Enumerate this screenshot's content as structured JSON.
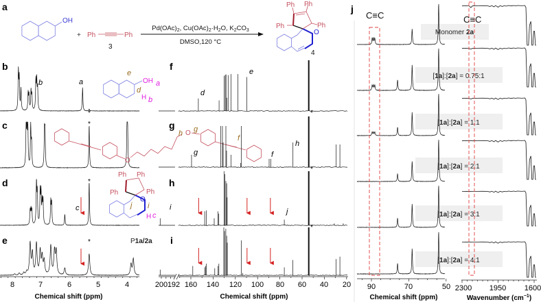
{
  "panel_labels": {
    "a": "a",
    "b": "b",
    "c": "c",
    "d": "d",
    "e": "e",
    "f": "f",
    "g": "g",
    "h": "h",
    "i": "i",
    "j": "j"
  },
  "reaction": {
    "naphthol_oh": "OH",
    "plus": "+",
    "alkyne_left": "Ph",
    "alkyne_right": "Ph",
    "alkyne_number": "3",
    "conditions_top": [
      "Pd(OAc)",
      "2",
      ", Cu(OAc)",
      "2",
      "·H",
      "2",
      "O, K",
      "2",
      "CO",
      "3"
    ],
    "conditions_bottom": "DMSO,120 °C",
    "product_phenyls": [
      "Ph",
      "Ph",
      "Ph",
      "Ph"
    ],
    "product_oxygen": "O",
    "product_number": "4"
  },
  "insets": {
    "b": {
      "e": "e",
      "oh": "OH",
      "a": "a",
      "d": "d",
      "h": "H",
      "b": "b"
    },
    "c": {
      "o_left": "O",
      "o_right": "O",
      "h": "h",
      "g": "g",
      "f": "f"
    },
    "d": {
      "ph": [
        "Ph",
        "Ph",
        "Ph",
        "Ph"
      ],
      "o": "O",
      "j": "j",
      "i": "i",
      "h": "H",
      "c": "c"
    },
    "e": {
      "prefix": "P",
      "name": "1a/2a"
    }
  },
  "annotations": {
    "b_a": "a",
    "b_b": "b",
    "star": "*",
    "d_c": "c",
    "f_d": "d",
    "f_e": "e",
    "g_g": "g",
    "g_f": "f",
    "g_h": "h",
    "h_i": "i",
    "h_j": "j",
    "j_cc_nmr": "C≡C",
    "j_cc_ir": "C≡C"
  },
  "j_labels": {
    "monomer": {
      "text": "Monomer ",
      "bold": "2a"
    },
    "ratios": [
      {
        "pre": "[",
        "a": "1a",
        "mid": "]:[",
        "b": "2a",
        "post": "] = 0.75:1"
      },
      {
        "pre": "[",
        "a": "1a",
        "mid": "]:[",
        "b": "2a",
        "post": "] = 1:1"
      },
      {
        "pre": "[",
        "a": "1a",
        "mid": "]:[",
        "b": "2a",
        "post": "] = 2:1"
      },
      {
        "pre": "[",
        "a": "1a",
        "mid": "]:[",
        "b": "2a",
        "post": "] = 3:1"
      },
      {
        "pre": "[",
        "a": "1a",
        "mid": "]:[",
        "b": "2a",
        "post": "] = 4:1"
      }
    ]
  },
  "axes": {
    "h1": {
      "ticks": [
        "8",
        "7",
        "6",
        "5",
        "4"
      ],
      "title": "Chemical shift (ppm)"
    },
    "c13": {
      "ticks": [
        "200",
        "192",
        "160",
        "140",
        "120",
        "100",
        "80",
        "60",
        "40",
        "20"
      ],
      "title": "Chemical shift (ppm)"
    },
    "j_nmr": {
      "ticks": [
        "90",
        "70",
        "50"
      ],
      "title": "Chemical shift (ppm)"
    },
    "ir": {
      "ticks": [
        "2300",
        "1950",
        "1600"
      ],
      "title": "Wavenumber (cm",
      "title_sup": "−1",
      "title_end": ")"
    }
  },
  "colors": {
    "blue": "#3a3ad6",
    "red_structure": "#c4505e",
    "dark_red": "#a01c2c",
    "magenta": "#e020e0",
    "brown": "#9a6a1e",
    "arrow_red": "#d42020",
    "dash_red": "#e04040",
    "label_box": "#efefef"
  },
  "chart_data": [
    {
      "type": "line",
      "panel": "b",
      "x_unit": "ppm",
      "xlim": [
        8.4,
        3.62
      ],
      "peaks": [
        [
          7.79,
          1.0
        ],
        [
          7.76,
          0.8
        ],
        [
          7.7,
          0.55
        ],
        [
          7.45,
          0.45
        ],
        [
          7.42,
          0.4
        ],
        [
          7.35,
          0.5
        ],
        [
          7.32,
          0.4
        ],
        [
          7.18,
          0.75
        ],
        [
          7.15,
          0.72
        ],
        [
          7.12,
          0.55
        ],
        [
          5.55,
          0.6
        ],
        [
          5.32,
          0.05
        ]
      ]
    },
    {
      "type": "line",
      "panel": "c",
      "x_unit": "ppm",
      "xlim": [
        8.4,
        3.62
      ],
      "peaks": [
        [
          7.52,
          0.9
        ],
        [
          7.49,
          0.95
        ],
        [
          7.46,
          0.85
        ],
        [
          7.36,
          0.95
        ],
        [
          7.33,
          0.55
        ],
        [
          6.88,
          0.8
        ],
        [
          6.86,
          0.75
        ],
        [
          5.32,
          1.0
        ],
        [
          4.0,
          0.95
        ],
        [
          3.98,
          0.85
        ]
      ]
    },
    {
      "type": "line",
      "panel": "d",
      "x_unit": "ppm",
      "xlim": [
        8.4,
        3.62
      ],
      "peaks": [
        [
          7.38,
          0.33
        ],
        [
          7.35,
          0.33
        ],
        [
          7.32,
          0.33
        ],
        [
          7.16,
          1.0
        ],
        [
          7.13,
          0.7
        ],
        [
          7.03,
          0.75
        ],
        [
          7.0,
          0.7
        ],
        [
          6.96,
          0.5
        ],
        [
          6.93,
          0.55
        ],
        [
          6.66,
          0.55
        ],
        [
          6.63,
          0.5
        ],
        [
          6.17,
          0.25
        ],
        [
          5.32,
          1.0
        ]
      ]
    },
    {
      "type": "line",
      "panel": "e",
      "x_unit": "ppm",
      "xlim": [
        8.4,
        3.62
      ],
      "peaks": [
        [
          7.92,
          0.03
        ],
        [
          7.76,
          0.05
        ],
        [
          7.6,
          0.06
        ],
        [
          7.5,
          0.08
        ],
        [
          7.38,
          0.8
        ],
        [
          7.3,
          0.55
        ],
        [
          7.16,
          0.8
        ],
        [
          7.03,
          0.6
        ],
        [
          6.96,
          0.45
        ],
        [
          6.89,
          0.35
        ],
        [
          6.66,
          0.75
        ],
        [
          6.53,
          0.6
        ],
        [
          6.47,
          0.6
        ],
        [
          6.17,
          0.18
        ],
        [
          5.32,
          0.55
        ],
        [
          3.86,
          0.28
        ],
        [
          3.78,
          0.42
        ]
      ]
    },
    {
      "type": "line",
      "panel": "f",
      "x_unit": "ppm",
      "peaks": [
        [
          153.3,
          0.33
        ],
        [
          134.6,
          0.28
        ],
        [
          130.0,
          0.93
        ],
        [
          129.1,
          0.96
        ],
        [
          128.4,
          0.97
        ],
        [
          127.7,
          0.35
        ],
        [
          126.5,
          0.95
        ],
        [
          123.8,
          0.98
        ],
        [
          117.8,
          0.98
        ],
        [
          109.6,
          0.9
        ],
        [
          54.0,
          1.35
        ]
      ]
    },
    {
      "type": "line",
      "panel": "g",
      "x_unit": "ppm",
      "peaks": [
        [
          159.4,
          0.3
        ],
        [
          133.2,
          1.0
        ],
        [
          131.6,
          1.0
        ],
        [
          131.0,
          0.6
        ],
        [
          128.5,
          1.0
        ],
        [
          127.9,
          0.4
        ],
        [
          123.8,
          0.3
        ],
        [
          115.4,
          0.1
        ],
        [
          114.7,
          1.0
        ],
        [
          89.6,
          0.2
        ],
        [
          88.2,
          0.2
        ],
        [
          68.2,
          0.6
        ],
        [
          54.0,
          1.25
        ],
        [
          29.3,
          0.55
        ],
        [
          26.0,
          0.55
        ]
      ]
    },
    {
      "type": "line",
      "panel": "h",
      "x_unit": "ppm",
      "peaks": [
        [
          201.0,
          0.15
        ],
        [
          147.6,
          0.3
        ],
        [
          146.2,
          0.32
        ],
        [
          139.0,
          0.15
        ],
        [
          135.6,
          0.3
        ],
        [
          134.9,
          0.25
        ],
        [
          130.2,
          1.2
        ],
        [
          129.5,
          1.1
        ],
        [
          128.5,
          0.95
        ],
        [
          127.8,
          0.9
        ],
        [
          127.4,
          0.6
        ],
        [
          76.0,
          0.12
        ],
        [
          54.0,
          1.3
        ],
        [
          31.0,
          0.04
        ],
        [
          23.0,
          0.04
        ]
      ]
    },
    {
      "type": "line",
      "panel": "i",
      "x_unit": "ppm",
      "peaks": [
        [
          201.0,
          0.12
        ],
        [
          158.3,
          0.2
        ],
        [
          147.6,
          0.17
        ],
        [
          146.8,
          0.2
        ],
        [
          146.0,
          0.25
        ],
        [
          138.5,
          0.15
        ],
        [
          135.5,
          0.2
        ],
        [
          134.8,
          0.25
        ],
        [
          130.4,
          1.1
        ],
        [
          129.7,
          0.95
        ],
        [
          128.6,
          1.0
        ],
        [
          127.8,
          0.85
        ],
        [
          127.3,
          0.7
        ],
        [
          114.6,
          0.75
        ],
        [
          113.5,
          0.05
        ],
        [
          76.0,
          0.17
        ],
        [
          68.3,
          0.33
        ],
        [
          54.0,
          1.25
        ],
        [
          29.4,
          0.35
        ],
        [
          26.0,
          0.4
        ]
      ]
    },
    {
      "type": "line",
      "panel": "j1",
      "x_unit": "ppm",
      "xlim": [
        97.5,
        50.5
      ],
      "peaks": [
        [
          89.6,
          0.15
        ],
        [
          88.9,
          0.15
        ],
        [
          88.2,
          0.15
        ],
        [
          68.2,
          0.38
        ],
        [
          54.0,
          1.0
        ]
      ]
    },
    {
      "type": "line",
      "panel": "j2",
      "x_unit": "ppm",
      "xlim": [
        97.5,
        50.5
      ],
      "peaks": [
        [
          89.6,
          0.12
        ],
        [
          88.9,
          0.12
        ],
        [
          88.2,
          0.12
        ],
        [
          76.0,
          0.25
        ],
        [
          68.2,
          0.6
        ],
        [
          54.0,
          1.0
        ]
      ]
    },
    {
      "type": "line",
      "panel": "j3",
      "x_unit": "ppm",
      "xlim": [
        97.5,
        50.5
      ],
      "peaks": [
        [
          89.6,
          0.08
        ],
        [
          88.9,
          0.08
        ],
        [
          88.2,
          0.08
        ],
        [
          76.0,
          0.2
        ],
        [
          68.2,
          0.55
        ],
        [
          54.0,
          1.0
        ]
      ]
    },
    {
      "type": "line",
      "panel": "j4",
      "x_unit": "ppm",
      "xlim": [
        97.5,
        50.5
      ],
      "peaks": [
        [
          76.0,
          0.18
        ],
        [
          68.2,
          0.48
        ],
        [
          54.0,
          1.0
        ]
      ]
    },
    {
      "type": "line",
      "panel": "j5",
      "x_unit": "ppm",
      "xlim": [
        97.5,
        50.5
      ],
      "peaks": [
        [
          76.0,
          0.22
        ],
        [
          68.2,
          0.55
        ],
        [
          54.0,
          1.0
        ]
      ]
    },
    {
      "type": "line",
      "panel": "j6",
      "x_unit": "ppm",
      "xlim": [
        97.5,
        50.5
      ],
      "peaks": [
        [
          76.0,
          0.25
        ],
        [
          68.2,
          0.6
        ],
        [
          54.0,
          1.0
        ]
      ]
    },
    {
      "type": "line",
      "panel": "ir",
      "x_unit": "cm-1",
      "xlim": [
        2300,
        1580
      ],
      "trace": [
        [
          2300,
          0.95
        ],
        [
          2260,
          0.97
        ],
        [
          2232,
          0.96
        ],
        [
          2215,
          0.75
        ],
        [
          2200,
          0.95
        ],
        [
          2150,
          0.97
        ],
        [
          2100,
          0.98
        ],
        [
          2050,
          0.96
        ],
        [
          2030,
          0.9
        ],
        [
          2010,
          0.98
        ],
        [
          1990,
          0.86
        ],
        [
          1975,
          0.99
        ],
        [
          1950,
          0.83
        ],
        [
          1930,
          0.98
        ],
        [
          1910,
          0.9
        ],
        [
          1890,
          0.97
        ],
        [
          1870,
          0.93
        ],
        [
          1850,
          1.0
        ],
        [
          1820,
          0.95
        ],
        [
          1800,
          1.0
        ],
        [
          1780,
          0.96
        ],
        [
          1760,
          1.0
        ],
        [
          1720,
          0.97
        ],
        [
          1690,
          1.0
        ],
        [
          1680,
          0.8
        ],
        [
          1668,
          0.0
        ],
        [
          1655,
          0.0
        ],
        [
          1645,
          0.5
        ],
        [
          1632,
          0.6
        ],
        [
          1622,
          0.0
        ],
        [
          1612,
          0.0
        ],
        [
          1604,
          0.35
        ],
        [
          1596,
          0.35
        ],
        [
          1588,
          0.0
        ],
        [
          1580,
          0.0
        ]
      ],
      "cc_dip_by_row": [
        0.22,
        0.12,
        0.12,
        0.03,
        0.03,
        0.03
      ]
    }
  ]
}
